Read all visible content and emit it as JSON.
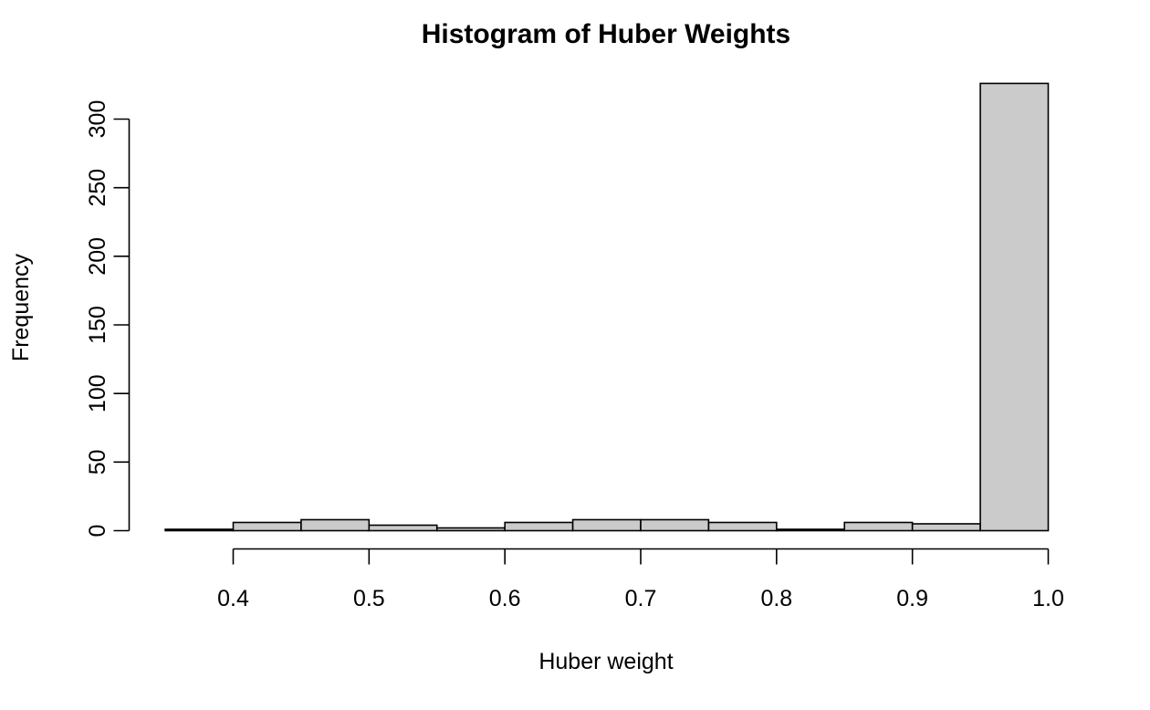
{
  "chart_data": {
    "type": "histogram",
    "title": "Histogram of Huber Weights",
    "xlabel": "Huber weight",
    "ylabel": "Frequency",
    "bin_edges": [
      0.35,
      0.4,
      0.45,
      0.5,
      0.55,
      0.6,
      0.65,
      0.7,
      0.75,
      0.8,
      0.85,
      0.9,
      0.95,
      1.0
    ],
    "counts": [
      1,
      6,
      8,
      4,
      2,
      6,
      8,
      8,
      6,
      1,
      6,
      5,
      326
    ],
    "x_ticks": [
      0.4,
      0.5,
      0.6,
      0.7,
      0.8,
      0.9,
      1.0
    ],
    "x_tick_labels": [
      "0.4",
      "0.5",
      "0.6",
      "0.7",
      "0.8",
      "0.9",
      "1.0"
    ],
    "y_ticks": [
      0,
      50,
      100,
      150,
      200,
      250,
      300
    ],
    "y_tick_labels": [
      "0",
      "50",
      "100",
      "150",
      "200",
      "250",
      "300"
    ],
    "xlim": [
      0.35,
      1.0
    ],
    "ylim": [
      0,
      326
    ],
    "grid": false,
    "bar_fill": "#cbcbcb",
    "bar_stroke": "#000000"
  }
}
